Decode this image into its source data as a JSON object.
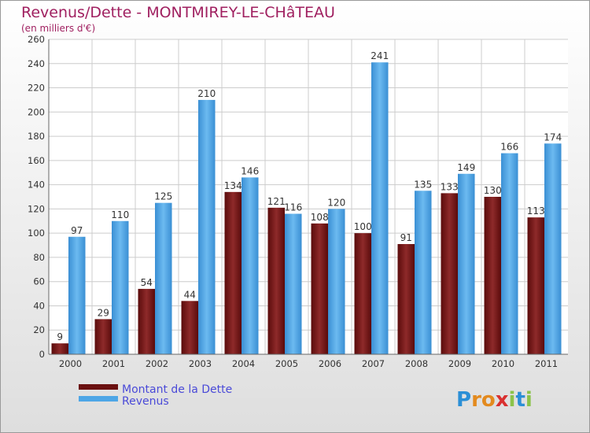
{
  "chart_data": {
    "type": "bar",
    "title": "Revenus/Dette - MONTMIREY-LE-CHâTEAU",
    "subtitle": "(en milliers d'€)",
    "categories": [
      "2000",
      "2001",
      "2002",
      "2003",
      "2004",
      "2005",
      "2006",
      "2007",
      "2008",
      "2009",
      "2010",
      "2011"
    ],
    "series": [
      {
        "name": "Montant de la Dette",
        "color": "#7a1a1a",
        "values": [
          9,
          29,
          54,
          44,
          134,
          121,
          108,
          100,
          91,
          133,
          130,
          113
        ]
      },
      {
        "name": "Revenus",
        "color": "#4ea6e6",
        "values": [
          97,
          110,
          125,
          210,
          146,
          116,
          120,
          241,
          135,
          149,
          166,
          174
        ]
      }
    ],
    "yticks": [
      0,
      20,
      40,
      60,
      80,
      100,
      120,
      140,
      160,
      180,
      200,
      220,
      240,
      260
    ],
    "ylim": [
      0,
      260
    ],
    "grid": true,
    "legend_position": "bottom-left"
  },
  "brand": {
    "name": "Proxiti",
    "letters": [
      "P",
      "r",
      "o",
      "x",
      "i",
      "t",
      "i"
    ],
    "colors": [
      "#2b8fd6",
      "#e38a1e",
      "#e38a1e",
      "#d93030",
      "#8bc34a",
      "#2b8fd6",
      "#8bc34a"
    ]
  }
}
